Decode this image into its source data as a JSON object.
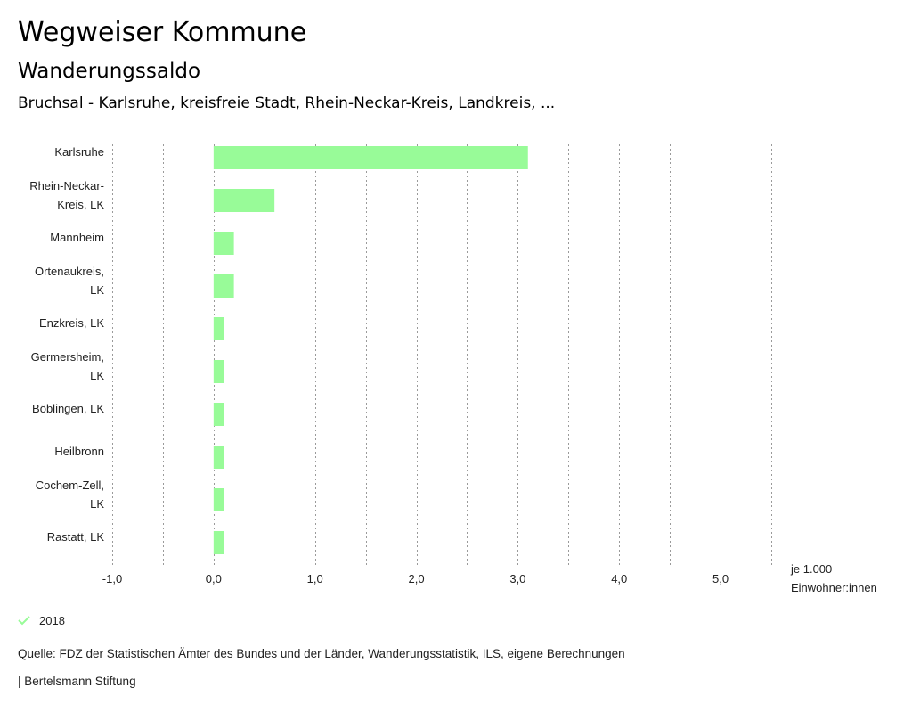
{
  "header": {
    "title": "Wegweiser Kommune",
    "subtitle": "Wanderungssaldo",
    "filter": "Bruchsal - Karlsruhe, kreisfreie Stadt, Rhein-Neckar-Kreis, Landkreis, ..."
  },
  "chart_data": {
    "type": "bar",
    "orientation": "horizontal",
    "categories": [
      [
        "Karlsruhe"
      ],
      [
        "Rhein-Neckar-",
        "Kreis, LK"
      ],
      [
        "Mannheim"
      ],
      [
        "Ortenaukreis,",
        "LK"
      ],
      [
        "Enzkreis, LK"
      ],
      [
        "Germersheim,",
        "LK"
      ],
      [
        "Böblingen, LK"
      ],
      [
        "Heilbronn"
      ],
      [
        "Cochem-Zell,",
        "LK"
      ],
      [
        "Rastatt, LK"
      ]
    ],
    "series": [
      {
        "name": "2018",
        "values": [
          3.1,
          0.6,
          0.2,
          0.2,
          0.1,
          0.1,
          0.1,
          0.1,
          0.1,
          0.1
        ]
      }
    ],
    "xlim": [
      -1.0,
      5.5
    ],
    "xticks": [
      -1.0,
      0.0,
      1.0,
      2.0,
      3.0,
      4.0,
      5.0
    ],
    "xtick_labels": [
      "-1,0",
      "0,0",
      "1,0",
      "2,0",
      "3,0",
      "4,0",
      "5,0"
    ],
    "grid_step": 0.5,
    "unit_label": [
      "je 1.000",
      "Einwohner:innen"
    ],
    "bar_color": "#98fb98",
    "grid": true,
    "legend": "bottom-left"
  },
  "legend": {
    "label": "2018",
    "check_color": "#98fb98"
  },
  "footer": {
    "source": "Quelle: FDZ der Statistischen Ämter des Bundes und der Länder, Wanderungsstatistik, ILS, eigene Berechnungen",
    "copyright": "| Bertelsmann Stiftung"
  }
}
